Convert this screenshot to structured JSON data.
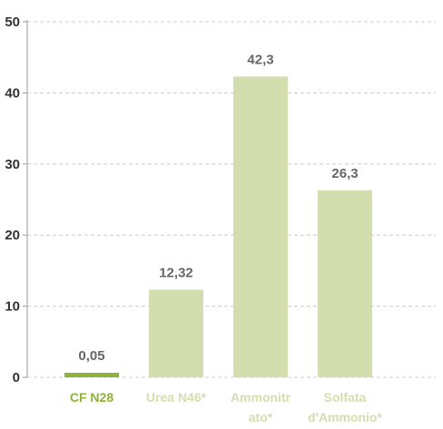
{
  "chart_data": {
    "type": "bar",
    "title": "",
    "xlabel": "",
    "ylabel": "",
    "ylim": [
      0,
      50
    ],
    "yticks": [
      0,
      10,
      20,
      30,
      40,
      50
    ],
    "grid": true,
    "categories": [
      [
        "CF N28"
      ],
      [
        "Urea N46*"
      ],
      [
        "Ammonitr",
        "ato*"
      ],
      [
        "Solfata",
        "d'Ammonio*"
      ]
    ],
    "values": [
      0.05,
      12.32,
      42.3,
      26.3
    ],
    "value_labels": [
      "0,05",
      "12,32",
      "42,3",
      "26,3"
    ],
    "highlight_index": 0,
    "colors": {
      "highlight_bar": "#8DB33A",
      "bar": "#D3DEAE",
      "highlight_label": "#8DB33A",
      "label": "#D3DEAE",
      "grid": "#cccccc",
      "axis": "#999999"
    }
  }
}
